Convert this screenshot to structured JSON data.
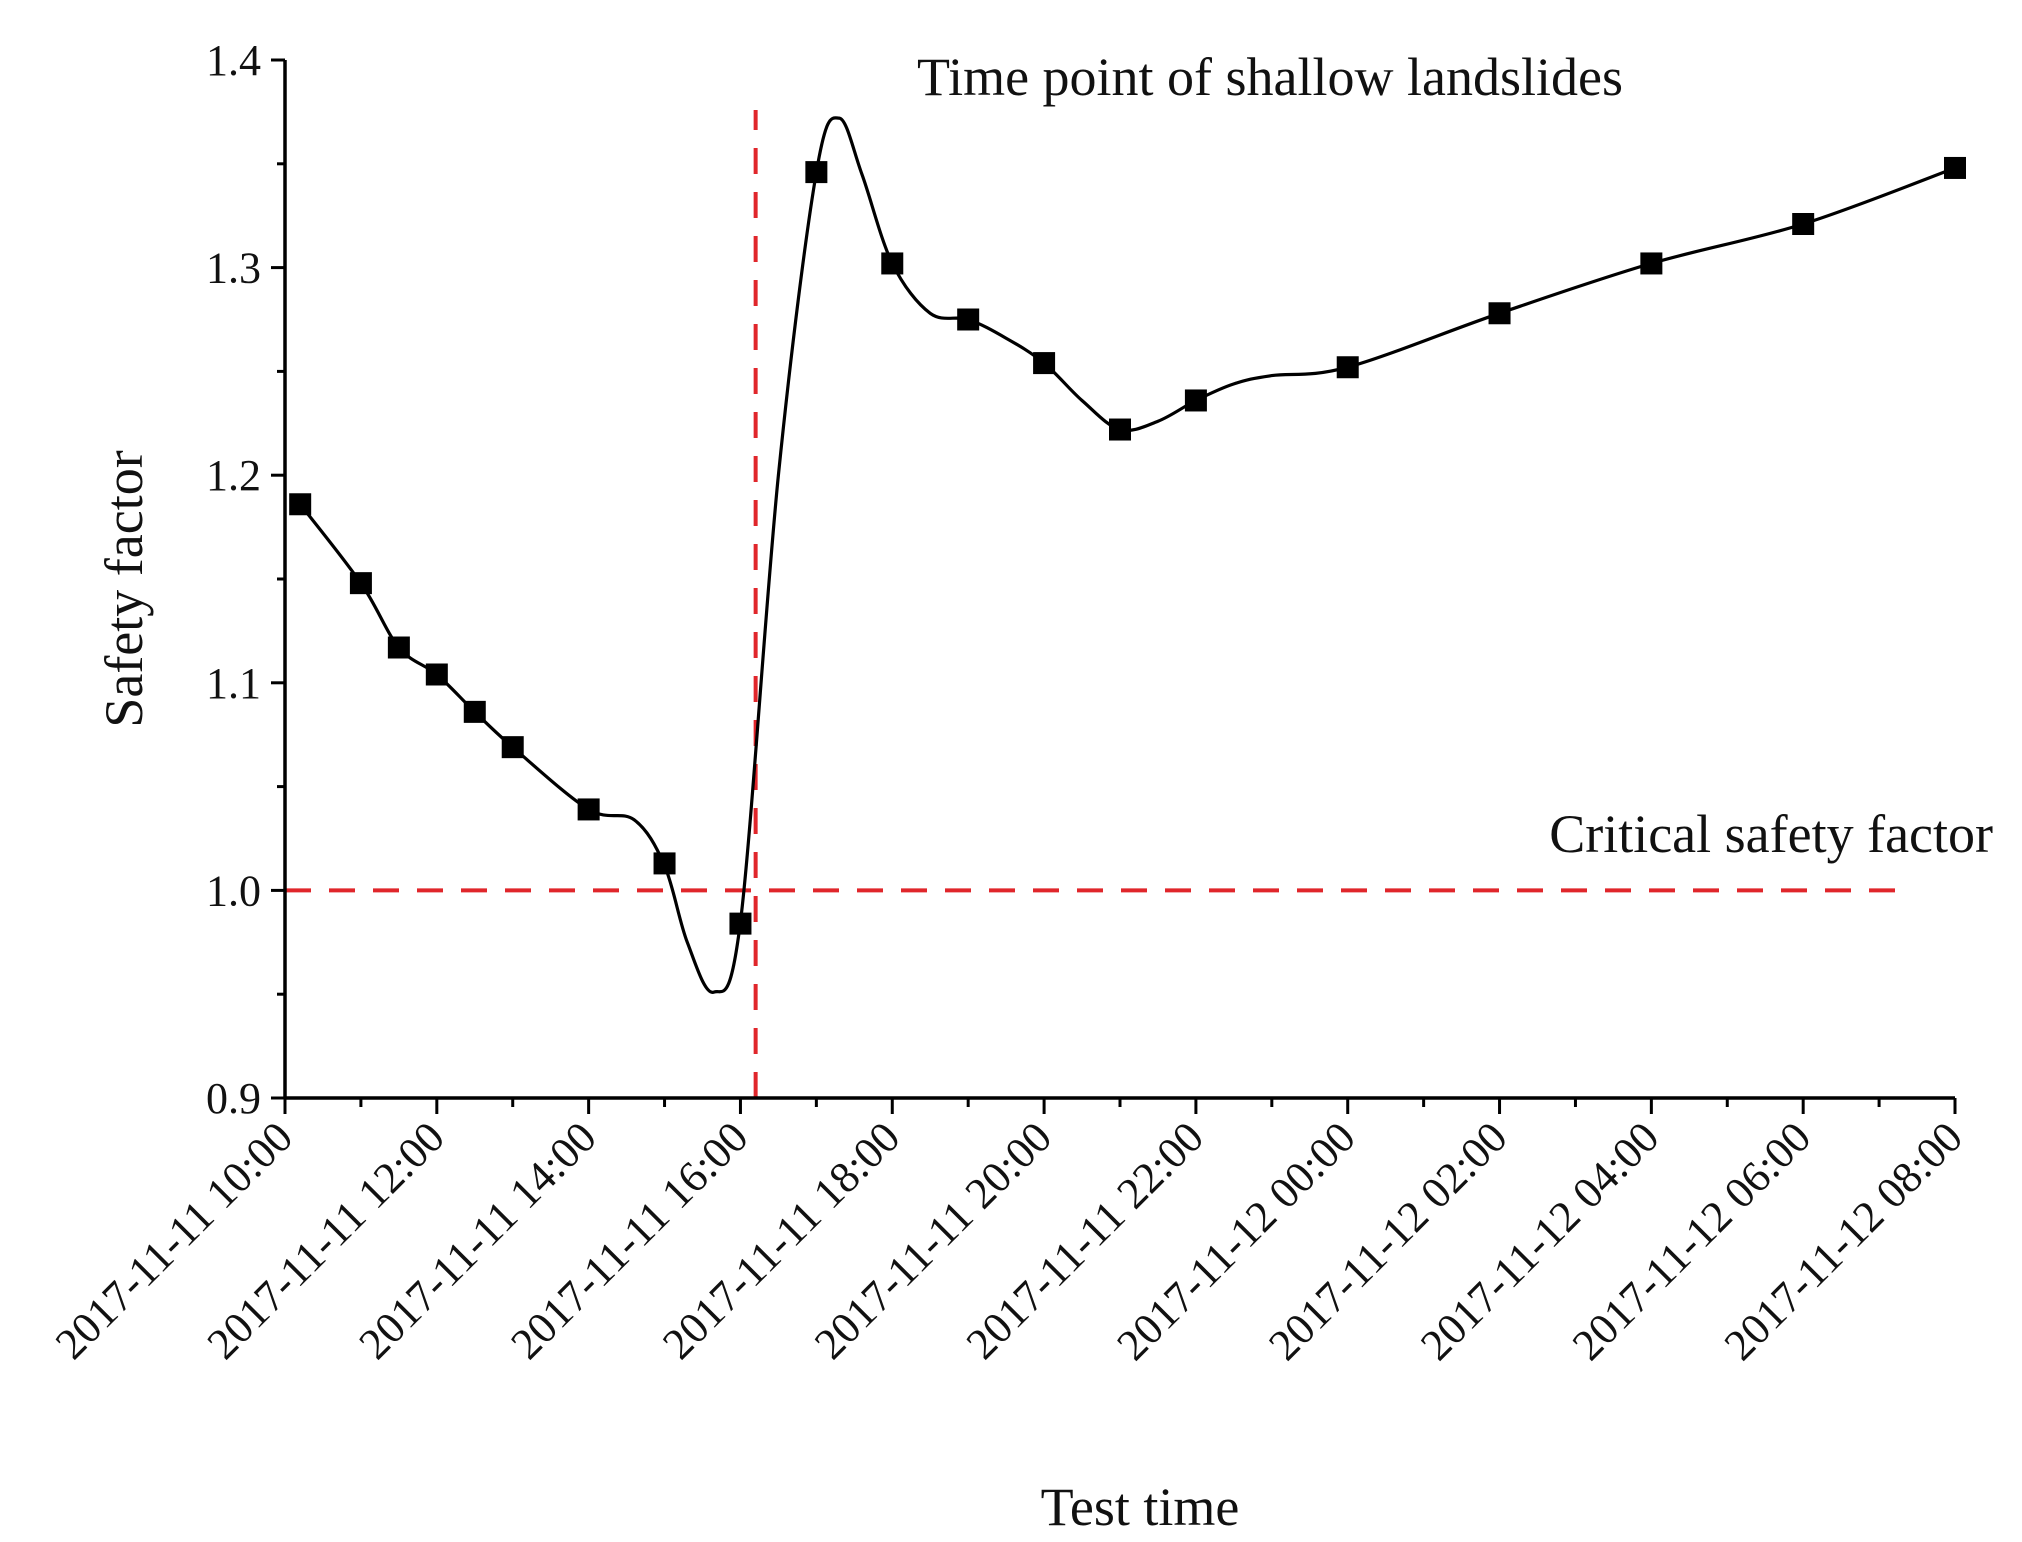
{
  "chart_data": {
    "type": "line",
    "title": "",
    "xlabel": "Test time",
    "ylabel": "Safety factor",
    "ylim": [
      0.9,
      1.4
    ],
    "xlim_hours": [
      0,
      22
    ],
    "y_ticks": [
      "0.9",
      "1.0",
      "1.1",
      "1.2",
      "1.3",
      "1.4"
    ],
    "x_tick_hours": [
      0,
      2,
      4,
      6,
      8,
      10,
      12,
      14,
      16,
      18,
      20,
      22
    ],
    "x_tick_labels": [
      "2017-11-11 10:00",
      "2017-11-11 12:00",
      "2017-11-11 14:00",
      "2017-11-11 16:00",
      "2017-11-11 18:00",
      "2017-11-11 20:00",
      "2017-11-11 22:00",
      "2017-11-12 00:00",
      "2017-11-12 02:00",
      "2017-11-12 04:00",
      "2017-11-12 06:00",
      "2017-11-12 08:00"
    ],
    "series": [
      {
        "name": "Safety factor",
        "color": "#000000",
        "marker": "square",
        "x_hours": [
          0.2,
          1,
          1.5,
          2,
          2.5,
          3,
          4,
          5,
          6,
          7,
          8,
          9,
          10,
          11,
          12,
          14,
          16,
          18,
          20,
          22
        ],
        "values": [
          1.186,
          1.148,
          1.117,
          1.104,
          1.086,
          1.069,
          1.039,
          1.013,
          0.984,
          1.346,
          1.302,
          1.275,
          1.254,
          1.222,
          1.236,
          1.252,
          1.278,
          1.302,
          1.321,
          1.348
        ],
        "curve_x_hours": [
          0.2,
          1,
          1.5,
          2,
          2.5,
          3,
          4,
          4.6,
          5,
          5.3,
          5.65,
          6,
          6.5,
          7,
          7.3,
          7.6,
          8,
          8.5,
          9,
          9.5,
          10,
          10.5,
          11,
          11.5,
          12,
          12.5,
          13,
          14,
          16,
          18,
          20,
          22
        ],
        "curve_values": [
          1.186,
          1.148,
          1.117,
          1.104,
          1.086,
          1.069,
          1.039,
          1.034,
          1.012,
          0.975,
          0.951,
          0.985,
          1.2,
          1.346,
          1.372,
          1.345,
          1.302,
          1.278,
          1.275,
          1.266,
          1.254,
          1.236,
          1.222,
          1.226,
          1.236,
          1.244,
          1.248,
          1.252,
          1.278,
          1.302,
          1.321,
          1.348
        ]
      }
    ],
    "reference_lines": [
      {
        "orientation": "horizontal",
        "value": 1.0,
        "color": "#e0262b",
        "style": "dashed",
        "label": "Critical safety factor"
      },
      {
        "orientation": "vertical",
        "value_hours": 6.2,
        "color": "#e0262b",
        "style": "dashed",
        "label": "Time point of shallow landslides"
      }
    ],
    "grid": false,
    "legend": "none"
  }
}
